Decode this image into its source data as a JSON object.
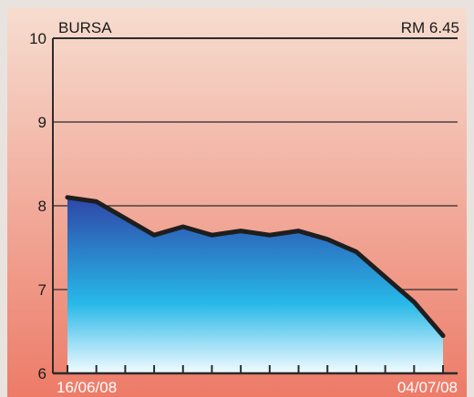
{
  "chart_data": {
    "type": "area",
    "title": "BURSA",
    "price_label": "RM 6.45",
    "x_start_label": "16/06/08",
    "x_end_label": "04/07/08",
    "ylim": [
      6,
      10
    ],
    "y_ticks": [
      6,
      7,
      8,
      9,
      10
    ],
    "grid": true,
    "x": [
      0,
      1,
      2,
      3,
      4,
      5,
      6,
      7,
      8,
      9,
      10,
      11,
      12,
      13
    ],
    "values": [
      8.1,
      8.05,
      7.85,
      7.65,
      7.75,
      7.65,
      7.7,
      7.65,
      7.7,
      7.6,
      7.45,
      7.15,
      6.85,
      6.45
    ],
    "colors": {
      "background_top": "#f6ddd0",
      "background_bottom": "#ed7b68",
      "area_top": "#2f46a8",
      "area_mid": "#27b8e8",
      "area_bottom": "#f3fbff",
      "line": "#1e1e1e",
      "grid": "#2b2b2b"
    }
  }
}
